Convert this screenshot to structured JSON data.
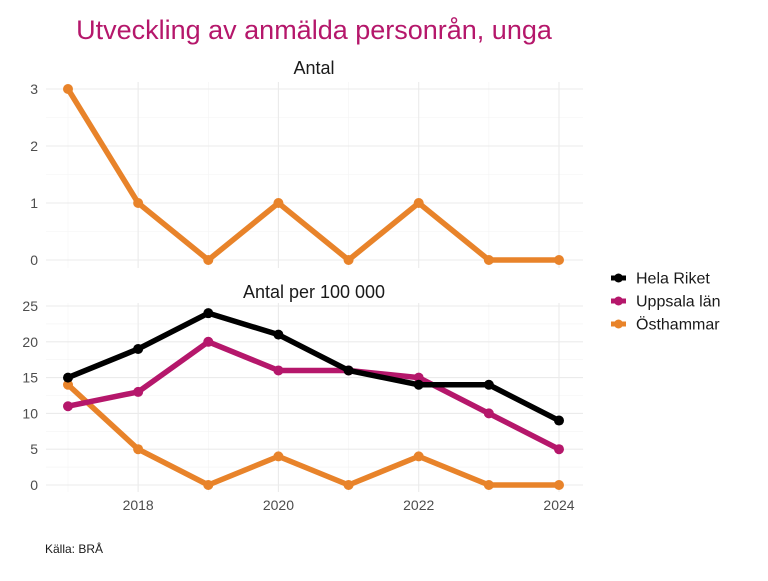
{
  "title": "Utveckling av anmälda personrån, unga",
  "source": "Källa: BRÅ",
  "colors": {
    "title": "#B5176B",
    "Hela Riket": "#000000",
    "Uppsala län": "#B5176B",
    "Östhammar": "#E8832A"
  },
  "legend": [
    "Hela Riket",
    "Uppsala län",
    "Östhammar"
  ],
  "chart_data": [
    {
      "type": "line",
      "title": "Antal",
      "x": [
        2017,
        2018,
        2019,
        2020,
        2021,
        2022,
        2023,
        2024
      ],
      "xlim": [
        2017,
        2024
      ],
      "x_ticks": [
        2018,
        2020,
        2022,
        2024
      ],
      "x_tick_labels_shown": false,
      "ylim": [
        0,
        3
      ],
      "y_ticks": [
        0,
        1,
        2,
        3
      ],
      "grid": true,
      "series": [
        {
          "name": "Östhammar",
          "values": [
            3,
            1,
            0,
            1,
            0,
            1,
            0,
            0
          ]
        }
      ]
    },
    {
      "type": "line",
      "title": "Antal per 100 000",
      "x": [
        2017,
        2018,
        2019,
        2020,
        2021,
        2022,
        2023,
        2024
      ],
      "xlim": [
        2017,
        2024
      ],
      "x_ticks": [
        2018,
        2020,
        2022,
        2024
      ],
      "x_tick_labels_shown": true,
      "ylim": [
        0,
        25
      ],
      "y_ticks": [
        0,
        5,
        10,
        15,
        20,
        25
      ],
      "grid": true,
      "legend_position": "right",
      "series": [
        {
          "name": "Hela Riket",
          "values": [
            15,
            19,
            24,
            21,
            16,
            14,
            14,
            9
          ]
        },
        {
          "name": "Uppsala län",
          "values": [
            11,
            13,
            20,
            16,
            16,
            15,
            10,
            5
          ]
        },
        {
          "name": "Östhammar",
          "values": [
            14,
            5,
            0,
            4,
            0,
            4,
            0,
            0
          ]
        }
      ]
    }
  ]
}
